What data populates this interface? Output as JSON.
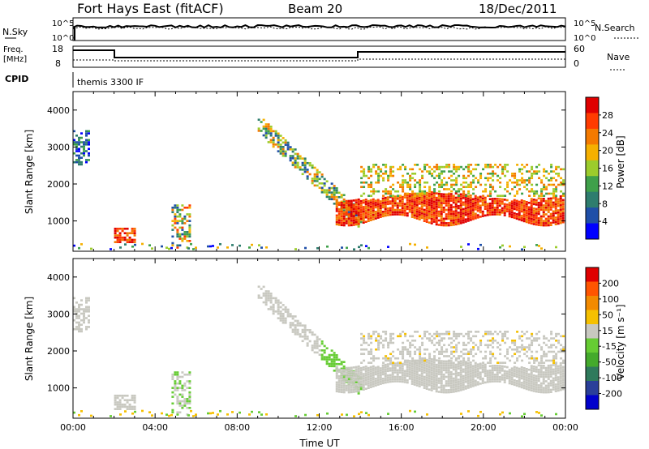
{
  "header": {
    "station": "Fort Hays East (fitACF)",
    "beam": "Beam 20",
    "date": "18/Dec/2011"
  },
  "noise_panel": {
    "left_label": "N.Sky",
    "right_label": "N.Search",
    "ytick_top": "10^5",
    "ytick_bottom": "10^0"
  },
  "freq_panel": {
    "left_label_1": "Freq.",
    "left_label_2": "[MHz]",
    "right_label": "Nave",
    "left_ticks": [
      "18",
      "8"
    ],
    "right_ticks": [
      "60",
      "0"
    ]
  },
  "cpid_panel": {
    "label": "CPID",
    "mode": "themis 3300 IF"
  },
  "colors": {
    "power_scale": [
      "#0000ff",
      "#1f4fa8",
      "#2e7d6e",
      "#3fa04a",
      "#9ccc2c",
      "#f5b000",
      "#f47a00",
      "#ff3b00",
      "#e00000"
    ],
    "velocity_scale": [
      "#0000cc",
      "#2a3f99",
      "#2f7a5c",
      "#44aa2c",
      "#66cc33",
      "#c8c8c0",
      "#f5c000",
      "#f28a00",
      "#ff5500",
      "#e00000"
    ]
  },
  "chart_data": [
    {
      "type": "heatmap",
      "name": "power",
      "ylabel": "Slant Range [km]",
      "yticks": [
        "1000",
        "2000",
        "3000",
        "4000"
      ],
      "ylim": [
        180,
        4500
      ],
      "colorbar_label": "Power [dB]",
      "colorbar_ticks": [
        "4",
        "8",
        "12",
        "16",
        "20",
        "24",
        "28"
      ],
      "regions": [
        {
          "t0": 0.0,
          "t1": 0.8,
          "r0": 2500,
          "r1": 3400,
          "value": "mixed-low"
        },
        {
          "t0": 2.0,
          "t1": 3.0,
          "r0": 400,
          "r1": 800,
          "value": "high"
        },
        {
          "t0": 4.8,
          "t1": 5.7,
          "r0": 300,
          "r1": 1400,
          "value": "mixed"
        },
        {
          "t0": 9.0,
          "t1": 14.0,
          "r0": 1000,
          "r1": 3600,
          "value": "descending-band"
        },
        {
          "t0": 12.5,
          "t1": 23.9,
          "r0": 900,
          "r1": 1600,
          "value": "very-high"
        },
        {
          "t0": 14.0,
          "t1": 23.9,
          "r0": 1600,
          "r1": 2500,
          "value": "mid"
        }
      ]
    },
    {
      "type": "heatmap",
      "name": "velocity",
      "ylabel": "Slant Range [km]",
      "yticks": [
        "1000",
        "2000",
        "3000",
        "4000"
      ],
      "ylim": [
        180,
        4500
      ],
      "colorbar_label": "Velocity [m s⁻¹]",
      "colorbar_ticks": [
        "200",
        "100",
        "50",
        "15",
        "-15",
        "-50",
        "-100",
        "-200"
      ],
      "xlabel": "Time UT",
      "xticks": [
        "00:00",
        "04:00",
        "08:00",
        "12:00",
        "16:00",
        "20:00",
        "00:00"
      ],
      "xlim": [
        0,
        24
      ]
    }
  ]
}
